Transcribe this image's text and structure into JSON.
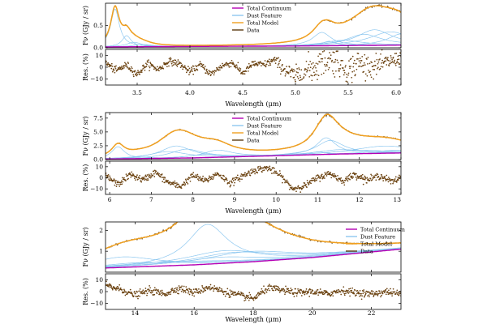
{
  "figure": {
    "legend_entries": [
      {
        "label": "Total Continuum",
        "color": "#b400b4"
      },
      {
        "label": "Dust Feature",
        "color": "#8ec8f0"
      },
      {
        "label": "Total Model",
        "color": "#f0a020"
      },
      {
        "label": "Data",
        "color": "#5a3a10"
      }
    ],
    "ylabel_flux": "Fν (GJy / sr)",
    "ylabel_res": "Res. (%)",
    "xlabel": "Wavelength (μm)"
  },
  "colors": {
    "continuum": "#b400b4",
    "dust": "#8ec8f0",
    "model": "#f0a020",
    "data": "#5a3a10",
    "residual": "#6b4210"
  },
  "chart_data": [
    {
      "type": "line",
      "panel": "3.2–6.0 μm",
      "xlim": [
        3.2,
        6.0
      ],
      "ylim_flux": [
        0,
        1.0
      ],
      "ylim_res": [
        -15,
        15
      ],
      "x_ticks": [
        "3.5",
        "4.0",
        "4.5",
        "5.0",
        "5.5",
        "6.0"
      ],
      "x_tick_values": [
        3.5,
        4.0,
        4.5,
        5.0,
        5.5,
        6.0
      ],
      "y_ticks_flux": [
        "0.0",
        "0.5"
      ],
      "y_tick_values_flux": [
        0.0,
        0.5
      ],
      "y_ticks_res": [
        "10",
        "0",
        "−10"
      ],
      "y_tick_values_res": [
        10,
        0,
        -10
      ],
      "legend_position": "top-center",
      "continuum": {
        "x": [
          3.2,
          4.0,
          5.0,
          6.0
        ],
        "y": [
          0.02,
          0.03,
          0.04,
          0.06
        ]
      },
      "features": [
        {
          "center": 3.29,
          "amp": 0.85,
          "width": 0.03
        },
        {
          "center": 3.4,
          "amp": 0.25,
          "width": 0.03
        },
        {
          "center": 3.47,
          "amp": 0.1,
          "width": 0.05
        },
        {
          "center": 3.56,
          "amp": 0.05,
          "width": 0.06
        },
        {
          "center": 5.25,
          "amp": 0.3,
          "width": 0.04
        },
        {
          "center": 5.32,
          "amp": 0.1,
          "width": 0.03
        },
        {
          "center": 5.45,
          "amp": 0.12,
          "width": 0.08
        },
        {
          "center": 5.65,
          "amp": 0.25,
          "width": 0.07
        },
        {
          "center": 5.75,
          "amp": 0.35,
          "width": 0.07
        },
        {
          "center": 5.9,
          "amp": 0.3,
          "width": 0.08
        },
        {
          "center": 6.0,
          "amp": 0.25,
          "width": 0.05
        }
      ],
      "residual_knots_x": [
        3.2,
        3.3,
        3.4,
        3.5,
        3.6,
        3.7,
        3.8,
        3.9,
        4.0,
        4.1,
        4.2,
        4.3,
        4.4,
        4.5,
        4.6,
        4.7,
        4.8,
        4.9,
        5.0,
        5.1,
        5.2,
        5.3,
        5.4,
        5.5,
        5.6,
        5.7,
        5.8,
        5.9,
        6.0
      ],
      "residual_knots_y": [
        4,
        -3,
        2,
        -6,
        3,
        -2,
        5,
        3,
        -4,
        2,
        -6,
        1,
        4,
        -5,
        3,
        2,
        6,
        -2,
        -8,
        -3,
        1,
        8,
        5,
        -3,
        4,
        0,
        2,
        5,
        8
      ],
      "residual_noise": [
        1.5,
        1.5,
        1.5,
        1.5,
        1.5,
        1.5,
        1.5,
        1.5,
        1.5,
        1.5,
        1.5,
        1.5,
        1.5,
        1.5,
        1.5,
        1.5,
        2,
        3,
        4,
        6,
        7,
        7,
        6,
        6,
        6,
        5,
        4,
        3,
        3
      ]
    },
    {
      "type": "line",
      "panel": "5.9–13.0 μm",
      "xlim": [
        5.9,
        13.0
      ],
      "ylim_flux": [
        0,
        8.5
      ],
      "ylim_res": [
        -15,
        15
      ],
      "x_ticks": [
        "6",
        "7",
        "8",
        "9",
        "10",
        "11",
        "12",
        "13"
      ],
      "x_tick_values": [
        6,
        7,
        8,
        9,
        10,
        11,
        12,
        13
      ],
      "y_ticks_flux": [
        "0.0",
        "2.5",
        "5.0",
        "7.5"
      ],
      "y_tick_values_flux": [
        0.0,
        2.5,
        5.0,
        7.5
      ],
      "y_ticks_res": [
        "10",
        "0",
        "−10"
      ],
      "y_tick_values_res": [
        10,
        0,
        -10
      ],
      "legend_position": "top-center",
      "continuum": {
        "x": [
          5.9,
          8.0,
          10.0,
          11.5,
          13.0
        ],
        "y": [
          0.1,
          0.3,
          0.7,
          1.0,
          1.2
        ]
      },
      "features": [
        {
          "center": 6.2,
          "amp": 2.2,
          "width": 0.06
        },
        {
          "center": 6.7,
          "amp": 0.3,
          "width": 0.1
        },
        {
          "center": 7.4,
          "amp": 1.2,
          "width": 0.15
        },
        {
          "center": 7.6,
          "amp": 2.2,
          "width": 0.12
        },
        {
          "center": 7.85,
          "amp": 1.6,
          "width": 0.12
        },
        {
          "center": 8.33,
          "amp": 0.6,
          "width": 0.12
        },
        {
          "center": 8.6,
          "amp": 1.3,
          "width": 0.1
        },
        {
          "center": 11.0,
          "amp": 0.5,
          "width": 0.04
        },
        {
          "center": 11.2,
          "amp": 3.0,
          "width": 0.05
        },
        {
          "center": 11.3,
          "amp": 2.5,
          "width": 0.07
        },
        {
          "center": 11.55,
          "amp": 0.8,
          "width": 0.12
        },
        {
          "center": 12.0,
          "amp": 0.6,
          "width": 0.15
        },
        {
          "center": 12.6,
          "amp": 1.3,
          "width": 0.14
        },
        {
          "center": 12.8,
          "amp": 0.5,
          "width": 0.1
        }
      ],
      "residual_knots_x": [
        5.9,
        6.2,
        6.5,
        6.8,
        7.1,
        7.4,
        7.7,
        8.0,
        8.3,
        8.6,
        8.9,
        9.2,
        9.5,
        9.8,
        10.1,
        10.4,
        10.7,
        11.0,
        11.3,
        11.6,
        11.9,
        12.2,
        12.5,
        12.8,
        13.0
      ],
      "residual_knots_y": [
        2,
        -6,
        3,
        -2,
        5,
        -4,
        -8,
        2,
        -3,
        4,
        -5,
        2,
        7,
        9,
        2,
        -10,
        -7,
        0,
        4,
        -3,
        3,
        -2,
        2,
        -4,
        1
      ],
      "residual_noise": [
        1.5,
        1.5,
        1.5,
        1.5,
        1.5,
        1.5,
        1.5,
        1.5,
        1.5,
        1.5,
        1.5,
        1.5,
        1.5,
        1.5,
        1.5,
        1.5,
        1.5,
        1.5,
        1.5,
        1.5,
        1.5,
        1.5,
        1.5,
        1.5,
        1.5
      ]
    },
    {
      "type": "line",
      "panel": "13.0–23.0 μm",
      "xlim": [
        13.0,
        23.0
      ],
      "ylim_flux": [
        0,
        2.4
      ],
      "ylim_res": [
        -15,
        15
      ],
      "x_ticks": [
        "14",
        "16",
        "18",
        "20",
        "22"
      ],
      "x_tick_values": [
        14,
        16,
        18,
        20,
        22
      ],
      "y_ticks_flux": [
        "1",
        "2"
      ],
      "y_tick_values_flux": [
        1,
        2
      ],
      "y_ticks_res": [
        "10",
        "0",
        "−10"
      ],
      "y_tick_values_res": [
        10,
        0,
        -10
      ],
      "legend_position": "top-right",
      "continuum": {
        "x": [
          13.0,
          16.0,
          18.0,
          20.0,
          23.0
        ],
        "y": [
          0.2,
          0.35,
          0.5,
          0.7,
          1.1
        ]
      },
      "features": [
        {
          "center": 13.6,
          "amp": 0.5,
          "width": 0.2
        },
        {
          "center": 14.2,
          "amp": 0.2,
          "width": 0.25
        },
        {
          "center": 15.2,
          "amp": 0.2,
          "width": 0.3
        },
        {
          "center": 16.45,
          "amp": 1.9,
          "width": 0.1
        },
        {
          "center": 16.9,
          "amp": 0.3,
          "width": 0.2
        },
        {
          "center": 17.05,
          "amp": 0.6,
          "width": 0.2
        },
        {
          "center": 17.4,
          "amp": 0.5,
          "width": 0.2
        },
        {
          "center": 17.87,
          "amp": 0.5,
          "width": 0.2
        }
      ],
      "residual_knots_x": [
        13.0,
        13.5,
        14.0,
        14.5,
        15.0,
        15.5,
        16.0,
        16.5,
        17.0,
        17.5,
        18.0,
        18.5,
        19.0,
        19.5,
        20.0,
        20.5,
        21.0,
        21.5,
        22.0,
        22.5,
        23.0
      ],
      "residual_knots_y": [
        5,
        2,
        -3,
        1,
        -2,
        3,
        -1,
        4,
        0,
        -3,
        -6,
        3,
        1,
        -1,
        0,
        -2,
        1,
        -1,
        -2,
        0,
        -2
      ],
      "residual_noise": [
        1.5,
        1.5,
        1.5,
        1.5,
        1.5,
        1.5,
        1.5,
        1.5,
        1.5,
        1.5,
        1.5,
        1.5,
        1.5,
        1.5,
        1.5,
        1.5,
        1.5,
        1.5,
        1.5,
        1.5,
        1.5
      ]
    }
  ]
}
